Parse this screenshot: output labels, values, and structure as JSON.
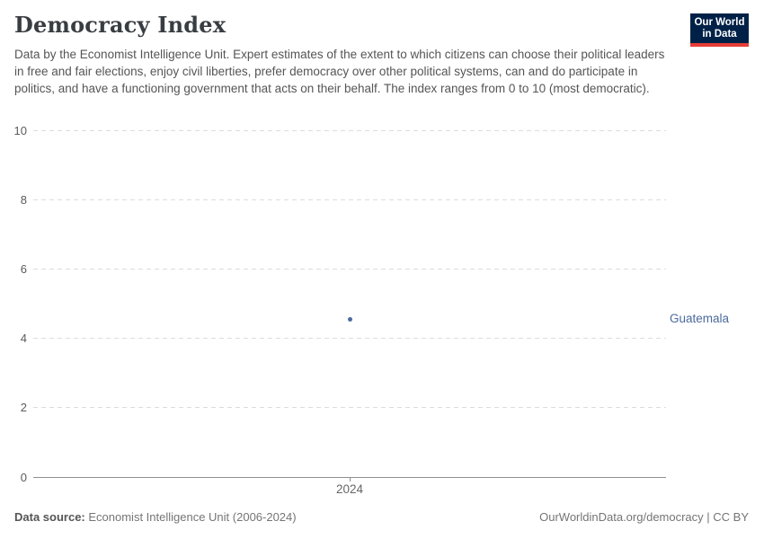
{
  "header": {
    "title": "Democracy Index",
    "subtitle": "Data by the Economist Intelligence Unit. Expert estimates of the extent to which citizens can choose their political leaders in free and fair elections, enjoy civil liberties, prefer democracy over other political systems, can and do participate in politics, and have a functioning government that acts on their behalf. The index ranges from 0 to 10 (most democratic).",
    "logo": {
      "line1": "Our World",
      "line2": "in Data",
      "bg_color": "#002147",
      "bar_color": "#e63e36"
    }
  },
  "chart_data": {
    "type": "scatter",
    "title": "Democracy Index",
    "x": [
      2024
    ],
    "xticks": [
      "2024"
    ],
    "series": [
      {
        "name": "Guatemala",
        "values": [
          4.55
        ],
        "color": "#4c6a9c"
      }
    ],
    "ylim": [
      0,
      10
    ],
    "yticks": [
      0,
      2,
      4,
      6,
      8,
      10
    ],
    "xlabel": "",
    "ylabel": "",
    "grid": true,
    "gridline_color": "#dcdcdc",
    "axis_color": "#8f8f8f",
    "legend_position": "right-of-point"
  },
  "footer": {
    "data_source_label": "Data source:",
    "data_source_value": " Economist Intelligence Unit (2006-2024)",
    "credit": "OurWorldinData.org/democracy | CC BY"
  }
}
